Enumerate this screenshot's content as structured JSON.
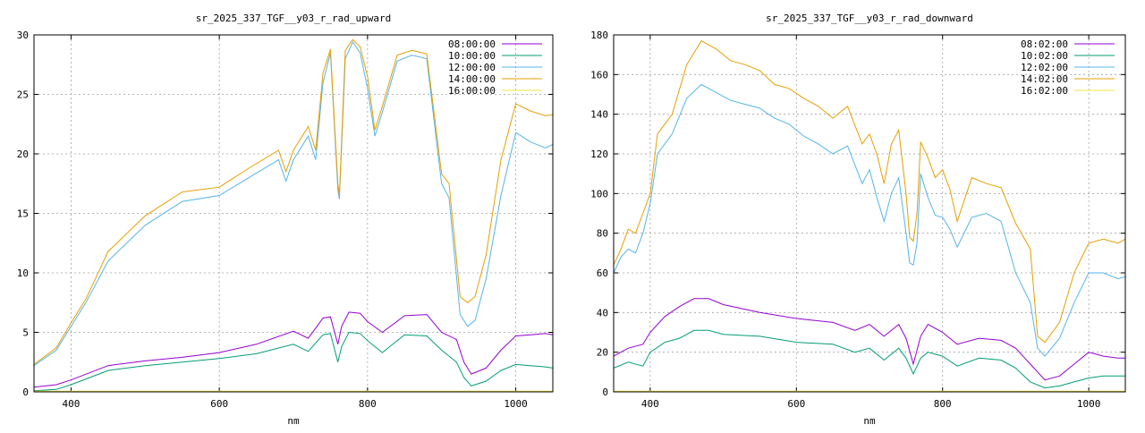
{
  "chart_data": [
    {
      "type": "line",
      "title": "sr_2025_337_TGF__y03_r_rad_upward",
      "xlabel": "nm",
      "ylabel": "",
      "xlim": [
        350,
        1050
      ],
      "ylim": [
        0,
        30
      ],
      "xticks": [
        400,
        600,
        800,
        1000
      ],
      "yticks": [
        0,
        5,
        10,
        15,
        20,
        25,
        30
      ],
      "grid": true,
      "legend_position": "top-right",
      "series": [
        {
          "name": "08:00:00",
          "color": "#9400d3",
          "x": [
            350,
            380,
            400,
            450,
            500,
            550,
            600,
            650,
            700,
            720,
            740,
            750,
            760,
            765,
            775,
            790,
            800,
            820,
            850,
            880,
            900,
            920,
            930,
            940,
            960,
            980,
            1000,
            1020,
            1040,
            1050
          ],
          "y": [
            0.4,
            0.6,
            1.0,
            2.2,
            2.6,
            2.9,
            3.3,
            4.0,
            5.1,
            4.5,
            6.2,
            6.3,
            4.0,
            5.5,
            6.7,
            6.6,
            5.9,
            5.0,
            6.4,
            6.5,
            5.0,
            4.4,
            2.5,
            1.5,
            2.0,
            3.5,
            4.7,
            4.8,
            4.9,
            4.8
          ]
        },
        {
          "name": "10:00:00",
          "color": "#009e73",
          "x": [
            350,
            380,
            400,
            450,
            500,
            550,
            600,
            650,
            700,
            720,
            740,
            750,
            760,
            765,
            775,
            790,
            800,
            820,
            850,
            880,
            900,
            920,
            930,
            940,
            960,
            980,
            1000,
            1020,
            1040,
            1050
          ],
          "y": [
            0.1,
            0.2,
            0.6,
            1.8,
            2.2,
            2.5,
            2.8,
            3.2,
            4.0,
            3.4,
            4.8,
            4.9,
            2.5,
            3.8,
            5.0,
            4.9,
            4.3,
            3.3,
            4.8,
            4.7,
            3.5,
            2.5,
            1.2,
            0.5,
            0.9,
            1.8,
            2.3,
            2.2,
            2.1,
            2.0
          ]
        },
        {
          "name": "12:00:00",
          "color": "#56b4e9",
          "x": [
            350,
            380,
            400,
            420,
            450,
            500,
            550,
            600,
            640,
            680,
            690,
            700,
            720,
            730,
            740,
            750,
            760,
            762,
            770,
            780,
            790,
            800,
            810,
            820,
            840,
            860,
            880,
            895,
            900,
            910,
            925,
            935,
            945,
            960,
            980,
            1000,
            1020,
            1040,
            1050
          ],
          "y": [
            2.2,
            3.5,
            5.5,
            7.5,
            11.0,
            14.0,
            16.0,
            16.5,
            18.0,
            19.5,
            17.7,
            19.5,
            21.5,
            19.5,
            26.0,
            28.5,
            17.0,
            16.2,
            28.0,
            29.4,
            28.5,
            25.5,
            21.5,
            23.5,
            27.8,
            28.3,
            28.0,
            20.0,
            17.5,
            16.3,
            6.5,
            5.5,
            6.0,
            9.5,
            16.5,
            21.8,
            21.0,
            20.5,
            20.8
          ]
        },
        {
          "name": "14:00:00",
          "color": "#e69f00",
          "x": [
            350,
            380,
            400,
            420,
            450,
            500,
            550,
            600,
            640,
            680,
            690,
            700,
            720,
            730,
            740,
            750,
            760,
            762,
            770,
            780,
            790,
            800,
            810,
            820,
            840,
            860,
            880,
            895,
            900,
            910,
            925,
            935,
            945,
            960,
            980,
            1000,
            1020,
            1040,
            1050
          ],
          "y": [
            2.3,
            3.7,
            5.8,
            7.8,
            11.8,
            14.8,
            16.8,
            17.2,
            18.8,
            20.3,
            18.5,
            20.3,
            22.3,
            20.3,
            26.8,
            28.8,
            17.5,
            16.5,
            28.7,
            29.6,
            29.0,
            26.5,
            22.0,
            24.0,
            28.3,
            28.7,
            28.4,
            20.8,
            18.3,
            17.5,
            8.0,
            7.5,
            8.0,
            11.5,
            19.5,
            24.2,
            23.6,
            23.2,
            23.3
          ]
        },
        {
          "name": "16:00:00",
          "color": "#f0e442",
          "x": [
            350,
            400,
            500,
            600,
            700,
            800,
            900,
            1000,
            1050
          ],
          "y": [
            0.05,
            0.05,
            0.05,
            0.05,
            0.05,
            0.05,
            0.05,
            0.05,
            0.05
          ]
        }
      ]
    },
    {
      "type": "line",
      "title": "sr_2025_337_TGF__y03_r_rad_downward",
      "xlabel": "nm",
      "ylabel": "",
      "xlim": [
        350,
        1050
      ],
      "ylim": [
        0,
        180
      ],
      "xticks": [
        400,
        600,
        800,
        1000
      ],
      "yticks": [
        0,
        20,
        40,
        60,
        80,
        100,
        120,
        140,
        160,
        180
      ],
      "grid": true,
      "legend_position": "top-right",
      "series": [
        {
          "name": "08:02:00",
          "color": "#9400d3",
          "x": [
            350,
            370,
            390,
            400,
            420,
            440,
            460,
            480,
            500,
            550,
            600,
            650,
            680,
            700,
            720,
            740,
            750,
            760,
            770,
            780,
            800,
            820,
            850,
            880,
            900,
            920,
            940,
            960,
            980,
            1000,
            1020,
            1040,
            1050
          ],
          "y": [
            18,
            22,
            24,
            30,
            38,
            43,
            47,
            47,
            44,
            40,
            37,
            35,
            31,
            34,
            28,
            34,
            27,
            14,
            28,
            34,
            30,
            24,
            27,
            26,
            22,
            14,
            6,
            8,
            14,
            20,
            18,
            17,
            17
          ]
        },
        {
          "name": "10:02:00",
          "color": "#009e73",
          "x": [
            350,
            370,
            390,
            400,
            420,
            440,
            460,
            480,
            500,
            550,
            600,
            650,
            680,
            700,
            720,
            740,
            750,
            760,
            770,
            780,
            800,
            820,
            850,
            880,
            900,
            920,
            940,
            960,
            980,
            1000,
            1020,
            1040,
            1050
          ],
          "y": [
            12,
            15,
            13,
            20,
            25,
            27,
            31,
            31,
            29,
            28,
            25,
            24,
            20,
            22,
            16,
            22,
            17,
            9,
            17,
            20,
            18,
            13,
            17,
            16,
            12,
            5,
            2,
            3,
            5,
            7,
            8,
            8,
            8
          ]
        },
        {
          "name": "12:02:00",
          "color": "#56b4e9",
          "x": [
            350,
            360,
            370,
            380,
            390,
            400,
            410,
            430,
            450,
            470,
            490,
            510,
            530,
            550,
            570,
            590,
            610,
            630,
            650,
            670,
            690,
            700,
            710,
            720,
            730,
            740,
            750,
            755,
            760,
            765,
            770,
            780,
            790,
            800,
            810,
            820,
            840,
            860,
            880,
            900,
            920,
            930,
            940,
            960,
            980,
            1000,
            1020,
            1040,
            1050
          ],
          "y": [
            60,
            68,
            72,
            70,
            80,
            95,
            120,
            130,
            148,
            155,
            151,
            147,
            145,
            143,
            138,
            135,
            129,
            125,
            120,
            124,
            105,
            112,
            98,
            86,
            100,
            108,
            80,
            65,
            64,
            75,
            110,
            98,
            89,
            88,
            82,
            73,
            88,
            90,
            86,
            60,
            45,
            22,
            18,
            27,
            45,
            60,
            60,
            57,
            58
          ]
        },
        {
          "name": "14:02:00",
          "color": "#e69f00",
          "x": [
            350,
            360,
            370,
            380,
            390,
            400,
            410,
            430,
            450,
            470,
            490,
            510,
            530,
            550,
            570,
            590,
            610,
            630,
            650,
            670,
            690,
            700,
            710,
            720,
            730,
            740,
            750,
            755,
            760,
            765,
            770,
            780,
            790,
            800,
            810,
            820,
            840,
            860,
            880,
            900,
            920,
            930,
            940,
            960,
            980,
            1000,
            1020,
            1040,
            1050
          ],
          "y": [
            64,
            72,
            82,
            80,
            90,
            100,
            130,
            140,
            165,
            177,
            173,
            167,
            165,
            162,
            155,
            153,
            148,
            144,
            138,
            144,
            125,
            130,
            120,
            105,
            125,
            132,
            100,
            78,
            76,
            90,
            126,
            118,
            108,
            112,
            102,
            86,
            108,
            105,
            103,
            85,
            72,
            28,
            25,
            35,
            60,
            75,
            77,
            75,
            77
          ]
        },
        {
          "name": "16:02:00",
          "color": "#f0e442",
          "x": [
            350,
            400,
            500,
            600,
            700,
            800,
            900,
            1000,
            1050
          ],
          "y": [
            0.3,
            0.3,
            0.3,
            0.3,
            0.3,
            0.3,
            0.3,
            0.3,
            0.3
          ]
        }
      ]
    }
  ]
}
